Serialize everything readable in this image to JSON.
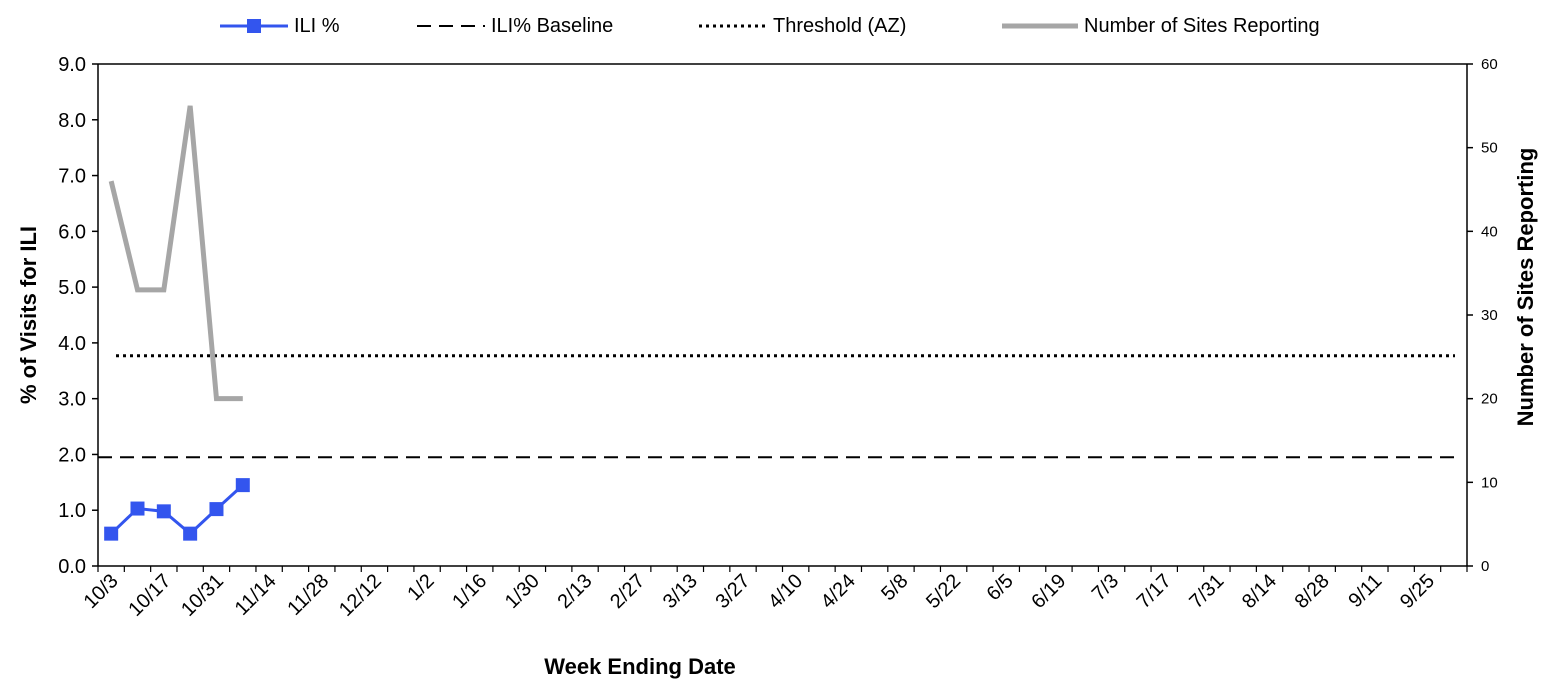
{
  "chart_data": {
    "type": "line",
    "title": "",
    "xlabel": "Week Ending Date",
    "ylabel": "% of Visits for ILI",
    "y2label": "Number of Sites Reporting",
    "x_ticks": [
      "10/3",
      "10/17",
      "10/31",
      "11/14",
      "11/28",
      "12/12",
      "1/2",
      "1/16",
      "1/30",
      "2/13",
      "2/27",
      "3/13",
      "3/27",
      "4/10",
      "4/24",
      "5/8",
      "5/22",
      "6/5",
      "6/19",
      "7/3",
      "7/17",
      "7/31",
      "8/14",
      "8/28",
      "9/11",
      "9/25"
    ],
    "x_tick_every_weeks": 2,
    "x_weeks_total": 52,
    "ylim": [
      0,
      9
    ],
    "y_ticks": [
      "0.0",
      "1.0",
      "2.0",
      "3.0",
      "4.0",
      "5.0",
      "6.0",
      "7.0",
      "8.0",
      "9.0"
    ],
    "y2lim": [
      0,
      60
    ],
    "y2_ticks": [
      "0",
      "10",
      "20",
      "30",
      "40",
      "50",
      "60"
    ],
    "grid": false,
    "legend_position": "top",
    "series": [
      {
        "name": "ILI %",
        "axis": "left",
        "style": "line-markers",
        "color": "#3355ee",
        "x": [
          "10/3",
          "10/10",
          "10/17",
          "10/24",
          "10/31",
          "11/7"
        ],
        "values": [
          0.58,
          1.03,
          0.98,
          0.58,
          1.02,
          1.45
        ]
      },
      {
        "name": "ILI% Baseline",
        "axis": "left",
        "style": "dashed",
        "color": "#000000",
        "value": 1.95
      },
      {
        "name": "Threshold (AZ)",
        "axis": "left",
        "style": "dotted",
        "color": "#000000",
        "value": 3.77
      },
      {
        "name": "Number of Sites Reporting",
        "axis": "right",
        "style": "line",
        "color": "#a6a6a6",
        "x": [
          "10/3",
          "10/10",
          "10/17",
          "10/24",
          "10/31",
          "11/7"
        ],
        "values": [
          46,
          33,
          33,
          55,
          20,
          20
        ]
      }
    ]
  }
}
